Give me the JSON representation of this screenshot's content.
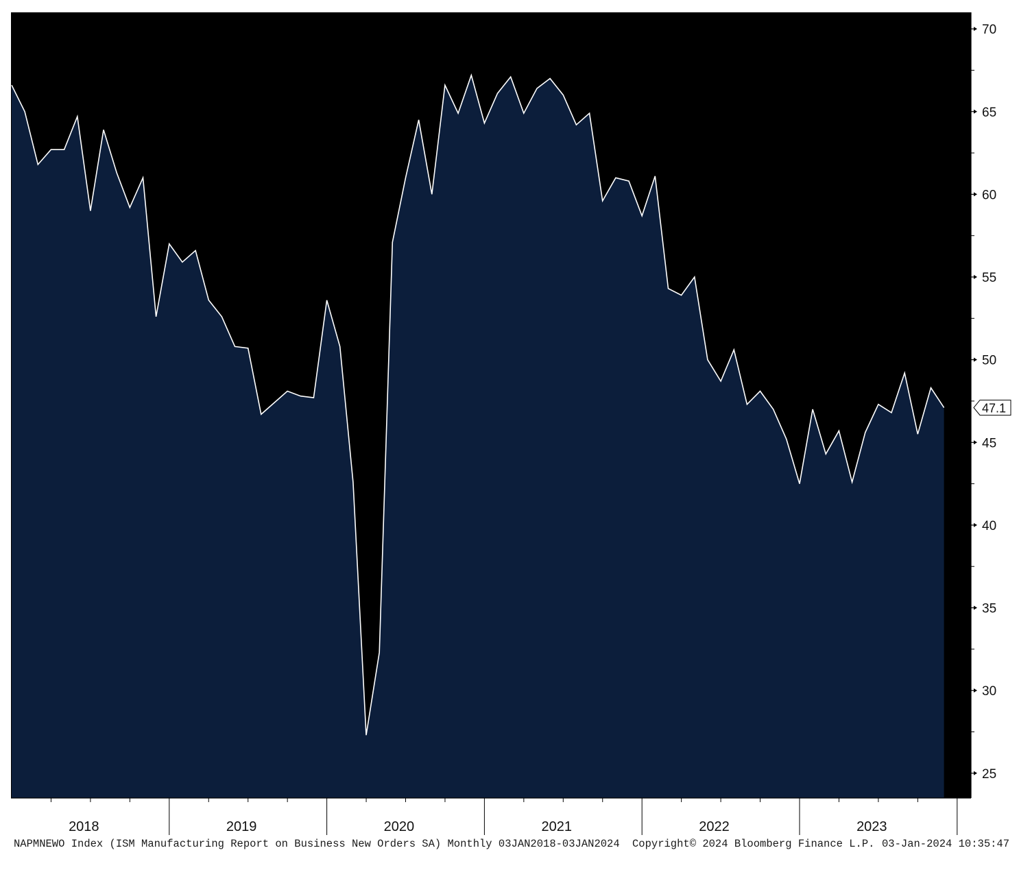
{
  "chart_data": {
    "type": "area",
    "x_start": "2018-01",
    "frequency": "monthly",
    "years": [
      "2018",
      "2019",
      "2020",
      "2021",
      "2022",
      "2023"
    ],
    "y_ticks": [
      "70",
      "65",
      "60",
      "55",
      "50",
      "45",
      "40",
      "35",
      "30",
      "25"
    ],
    "ylim": [
      23.5,
      71
    ],
    "last_value_label": "47.1",
    "series": [
      {
        "values": [
          66.6,
          65.0,
          61.8,
          62.7,
          62.7,
          64.7,
          59.0,
          63.9,
          61.3,
          59.2,
          61.0,
          52.6,
          57.0,
          55.9,
          56.6,
          53.6,
          52.6,
          50.8,
          50.7,
          46.7,
          47.4,
          48.1,
          47.8,
          47.7,
          53.6,
          50.8,
          42.6,
          27.3,
          32.3,
          57.1,
          61.0,
          64.5,
          60.0,
          66.6,
          64.9,
          67.2,
          64.3,
          66.1,
          67.1,
          64.9,
          66.4,
          67.0,
          66.0,
          64.2,
          64.9,
          59.6,
          61.0,
          60.8,
          58.7,
          61.1,
          54.3,
          53.9,
          55.0,
          50.0,
          48.7,
          50.6,
          47.3,
          48.1,
          47.0,
          45.2,
          42.5,
          47.0,
          44.3,
          45.7,
          42.6,
          45.6,
          47.3,
          46.8,
          49.2,
          45.5,
          48.3,
          47.1
        ]
      }
    ],
    "grid": false,
    "colors": {
      "background": "#000000",
      "area_fill": "#0c1e3b",
      "line": "#ffffff"
    }
  },
  "footer": {
    "ticker": "NAPMNEWO Index (ISM Manufacturing Report on Business New Orders SA)  Monthly 03JAN2018-03JAN2024",
    "copyright": "Copyright© 2024 Bloomberg Finance L.P.",
    "timestamp": "03-Jan-2024 10:35:47"
  }
}
